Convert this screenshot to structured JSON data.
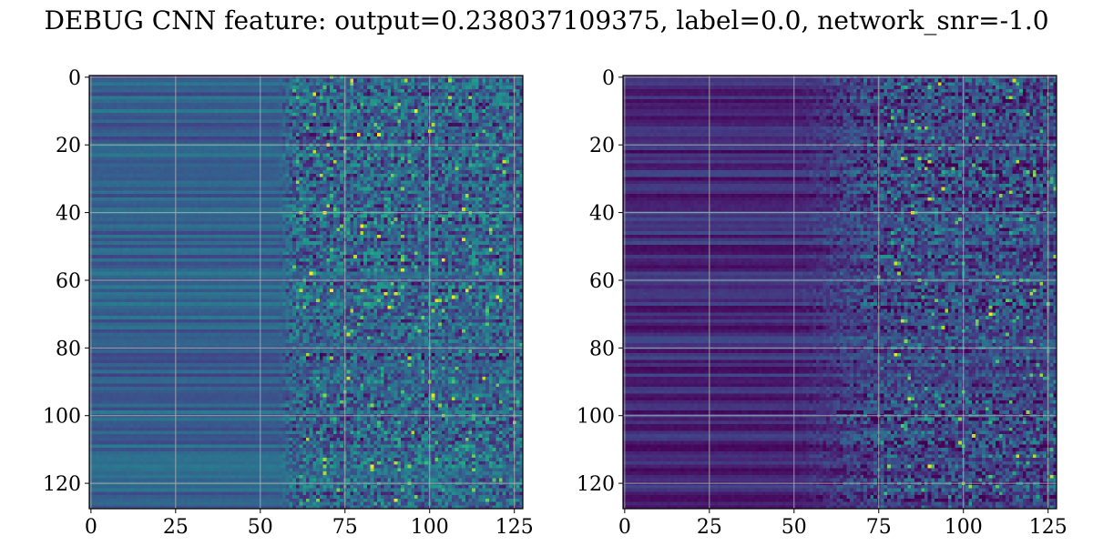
{
  "figure": {
    "title": "DEBUG CNN feature: output=0.238037109375, label=0.0, network_snr=-1.0"
  },
  "chart_data": [
    {
      "type": "heatmap",
      "panel": "left",
      "colormap": "viridis",
      "rows": 128,
      "cols": 128,
      "xlim": [
        -0.5,
        127.5
      ],
      "ylim": [
        127.5,
        -0.5
      ],
      "xticks": [
        0,
        25,
        50,
        75,
        100,
        125
      ],
      "yticks": [
        0,
        20,
        40,
        60,
        80,
        100,
        120
      ],
      "xtick_labels": [
        "0",
        "25",
        "50",
        "75",
        "100",
        "125"
      ],
      "ytick_labels": [
        "0",
        "20",
        "40",
        "60",
        "80",
        "100",
        "120"
      ],
      "grid": true,
      "value_pattern": {
        "smooth_region_cols": [
          0,
          55
        ],
        "smooth_level": 0.3,
        "noisy_region_cols": [
          60,
          127
        ],
        "noisy_mean": 0.32,
        "hotspots": [
          [
            63,
            80
          ],
          [
            64,
            90
          ],
          [
            65,
            107
          ],
          [
            68,
            88
          ],
          [
            58,
            65
          ],
          [
            25,
            122
          ],
          [
            16,
            100
          ],
          [
            44,
            80
          ]
        ]
      }
    },
    {
      "type": "heatmap",
      "panel": "right",
      "colormap": "viridis",
      "rows": 128,
      "cols": 128,
      "xlim": [
        -0.5,
        127.5
      ],
      "ylim": [
        127.5,
        -0.5
      ],
      "xticks": [
        0,
        25,
        50,
        75,
        100,
        125
      ],
      "yticks": [
        0,
        20,
        40,
        60,
        80,
        100,
        120
      ],
      "xtick_labels": [
        "0",
        "25",
        "50",
        "75",
        "100",
        "125"
      ],
      "ytick_labels": [
        "0",
        "20",
        "40",
        "60",
        "80",
        "100",
        "120"
      ],
      "grid": true,
      "value_pattern": {
        "smooth_region_cols": [
          0,
          50
        ],
        "smooth_level": 0.12,
        "noisy_region_cols": [
          75,
          127
        ],
        "noisy_mean": 0.22,
        "hotspots": [
          [
            24,
            82
          ],
          [
            36,
            90
          ],
          [
            40,
            85
          ],
          [
            72,
            82
          ],
          [
            82,
            80
          ],
          [
            95,
            84
          ],
          [
            115,
            90
          ],
          [
            70,
            108
          ],
          [
            55,
            80
          ]
        ]
      }
    }
  ]
}
